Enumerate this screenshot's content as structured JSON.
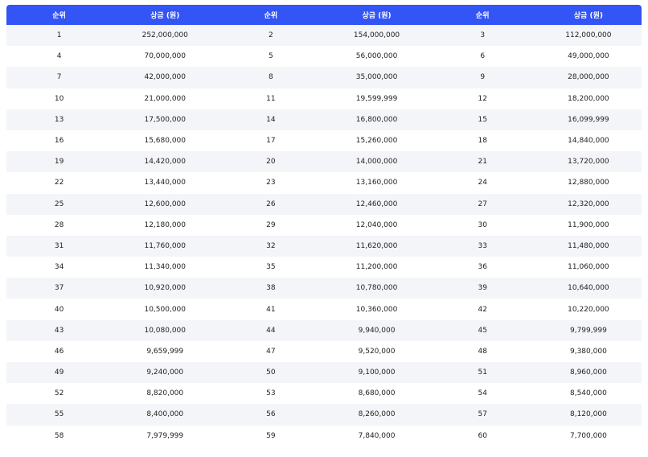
{
  "header": {
    "rank_label": "순위",
    "prize_label": "상금 (원)"
  },
  "rows": [
    [
      {
        "rank": "1",
        "prize": "252,000,000"
      },
      {
        "rank": "2",
        "prize": "154,000,000"
      },
      {
        "rank": "3",
        "prize": "112,000,000"
      }
    ],
    [
      {
        "rank": "4",
        "prize": "70,000,000"
      },
      {
        "rank": "5",
        "prize": "56,000,000"
      },
      {
        "rank": "6",
        "prize": "49,000,000"
      }
    ],
    [
      {
        "rank": "7",
        "prize": "42,000,000"
      },
      {
        "rank": "8",
        "prize": "35,000,000"
      },
      {
        "rank": "9",
        "prize": "28,000,000"
      }
    ],
    [
      {
        "rank": "10",
        "prize": "21,000,000"
      },
      {
        "rank": "11",
        "prize": "19,599,999"
      },
      {
        "rank": "12",
        "prize": "18,200,000"
      }
    ],
    [
      {
        "rank": "13",
        "prize": "17,500,000"
      },
      {
        "rank": "14",
        "prize": "16,800,000"
      },
      {
        "rank": "15",
        "prize": "16,099,999"
      }
    ],
    [
      {
        "rank": "16",
        "prize": "15,680,000"
      },
      {
        "rank": "17",
        "prize": "15,260,000"
      },
      {
        "rank": "18",
        "prize": "14,840,000"
      }
    ],
    [
      {
        "rank": "19",
        "prize": "14,420,000"
      },
      {
        "rank": "20",
        "prize": "14,000,000"
      },
      {
        "rank": "21",
        "prize": "13,720,000"
      }
    ],
    [
      {
        "rank": "22",
        "prize": "13,440,000"
      },
      {
        "rank": "23",
        "prize": "13,160,000"
      },
      {
        "rank": "24",
        "prize": "12,880,000"
      }
    ],
    [
      {
        "rank": "25",
        "prize": "12,600,000"
      },
      {
        "rank": "26",
        "prize": "12,460,000"
      },
      {
        "rank": "27",
        "prize": "12,320,000"
      }
    ],
    [
      {
        "rank": "28",
        "prize": "12,180,000"
      },
      {
        "rank": "29",
        "prize": "12,040,000"
      },
      {
        "rank": "30",
        "prize": "11,900,000"
      }
    ],
    [
      {
        "rank": "31",
        "prize": "11,760,000"
      },
      {
        "rank": "32",
        "prize": "11,620,000"
      },
      {
        "rank": "33",
        "prize": "11,480,000"
      }
    ],
    [
      {
        "rank": "34",
        "prize": "11,340,000"
      },
      {
        "rank": "35",
        "prize": "11,200,000"
      },
      {
        "rank": "36",
        "prize": "11,060,000"
      }
    ],
    [
      {
        "rank": "37",
        "prize": "10,920,000"
      },
      {
        "rank": "38",
        "prize": "10,780,000"
      },
      {
        "rank": "39",
        "prize": "10,640,000"
      }
    ],
    [
      {
        "rank": "40",
        "prize": "10,500,000"
      },
      {
        "rank": "41",
        "prize": "10,360,000"
      },
      {
        "rank": "42",
        "prize": "10,220,000"
      }
    ],
    [
      {
        "rank": "43",
        "prize": "10,080,000"
      },
      {
        "rank": "44",
        "prize": "9,940,000"
      },
      {
        "rank": "45",
        "prize": "9,799,999"
      }
    ],
    [
      {
        "rank": "46",
        "prize": "9,659,999"
      },
      {
        "rank": "47",
        "prize": "9,520,000"
      },
      {
        "rank": "48",
        "prize": "9,380,000"
      }
    ],
    [
      {
        "rank": "49",
        "prize": "9,240,000"
      },
      {
        "rank": "50",
        "prize": "9,100,000"
      },
      {
        "rank": "51",
        "prize": "8,960,000"
      }
    ],
    [
      {
        "rank": "52",
        "prize": "8,820,000"
      },
      {
        "rank": "53",
        "prize": "8,680,000"
      },
      {
        "rank": "54",
        "prize": "8,540,000"
      }
    ],
    [
      {
        "rank": "55",
        "prize": "8,400,000"
      },
      {
        "rank": "56",
        "prize": "8,260,000"
      },
      {
        "rank": "57",
        "prize": "8,120,000"
      }
    ],
    [
      {
        "rank": "58",
        "prize": "7,979,999"
      },
      {
        "rank": "59",
        "prize": "7,840,000"
      },
      {
        "rank": "60",
        "prize": "7,700,000"
      }
    ]
  ]
}
